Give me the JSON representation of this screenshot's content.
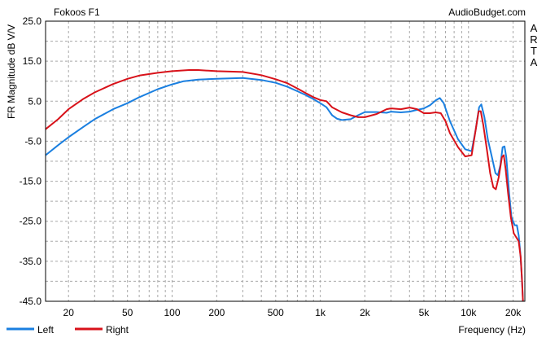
{
  "chart_data": {
    "type": "line",
    "title": "Fokoos F1",
    "source_label": "AudioBudget.com",
    "side_label": "ARTA",
    "xlabel": "Frequency (Hz)",
    "ylabel": "FR Magnitude dB V/V",
    "x_scale": "log",
    "xlim": [
      14,
      24000
    ],
    "ylim": [
      -45,
      25
    ],
    "x_ticks": [
      {
        "value": 20,
        "label": "20"
      },
      {
        "value": 50,
        "label": "50"
      },
      {
        "value": 100,
        "label": "100"
      },
      {
        "value": 200,
        "label": "200"
      },
      {
        "value": 500,
        "label": "500"
      },
      {
        "value": 1000,
        "label": "1k"
      },
      {
        "value": 2000,
        "label": "2k"
      },
      {
        "value": 5000,
        "label": "5k"
      },
      {
        "value": 10000,
        "label": "10k"
      },
      {
        "value": 20000,
        "label": "20k"
      }
    ],
    "y_ticks": [
      {
        "value": 25,
        "label": "25.0"
      },
      {
        "value": 15,
        "label": "15.0"
      },
      {
        "value": 5,
        "label": "5.0"
      },
      {
        "value": -5,
        "label": "-5.0"
      },
      {
        "value": -15,
        "label": "-15.0"
      },
      {
        "value": -25,
        "label": "-25.0"
      },
      {
        "value": -35,
        "label": "-35.0"
      },
      {
        "value": -45,
        "label": "-45.0"
      }
    ],
    "grid": true,
    "legend_position": "bottom-left",
    "series": [
      {
        "name": "Left",
        "color": "#1a7fe0",
        "points": [
          [
            14,
            -8.5
          ],
          [
            17,
            -6
          ],
          [
            20,
            -4
          ],
          [
            25,
            -1.5
          ],
          [
            30,
            0.5
          ],
          [
            40,
            3
          ],
          [
            50,
            4.5
          ],
          [
            60,
            6
          ],
          [
            80,
            8
          ],
          [
            100,
            9.2
          ],
          [
            120,
            10
          ],
          [
            150,
            10.4
          ],
          [
            200,
            10.6
          ],
          [
            300,
            10.8
          ],
          [
            400,
            10.3
          ],
          [
            500,
            9.6
          ],
          [
            600,
            8.6
          ],
          [
            700,
            7.5
          ],
          [
            800,
            6.5
          ],
          [
            900,
            5.5
          ],
          [
            1000,
            4.5
          ],
          [
            1100,
            3.5
          ],
          [
            1200,
            1.5
          ],
          [
            1300,
            0.6
          ],
          [
            1400,
            0.3
          ],
          [
            1600,
            0.5
          ],
          [
            1800,
            1.5
          ],
          [
            2000,
            2.3
          ],
          [
            2400,
            2.3
          ],
          [
            2800,
            2.1
          ],
          [
            3000,
            2.4
          ],
          [
            3500,
            2.2
          ],
          [
            4000,
            2.4
          ],
          [
            5000,
            3.2
          ],
          [
            5500,
            4
          ],
          [
            6000,
            5.2
          ],
          [
            6400,
            5.8
          ],
          [
            6800,
            4.5
          ],
          [
            7500,
            0
          ],
          [
            8500,
            -4.5
          ],
          [
            9500,
            -7
          ],
          [
            10500,
            -7.5
          ],
          [
            11200,
            -2
          ],
          [
            11800,
            3.5
          ],
          [
            12200,
            4.2
          ],
          [
            12800,
            1
          ],
          [
            13500,
            -4.5
          ],
          [
            14500,
            -9.5
          ],
          [
            15200,
            -13
          ],
          [
            15800,
            -13.5
          ],
          [
            16400,
            -11
          ],
          [
            17000,
            -6.5
          ],
          [
            17500,
            -6.3
          ],
          [
            18000,
            -9
          ],
          [
            18800,
            -18
          ],
          [
            19500,
            -24
          ],
          [
            20500,
            -26
          ],
          [
            21200,
            -26
          ],
          [
            21800,
            -28.5
          ],
          [
            22400,
            -33
          ],
          [
            22900,
            -39
          ],
          [
            23300,
            -45
          ]
        ]
      },
      {
        "name": "Right",
        "color": "#d8121a",
        "points": [
          [
            14,
            -2
          ],
          [
            17,
            0.5
          ],
          [
            20,
            3
          ],
          [
            25,
            5.5
          ],
          [
            30,
            7.2
          ],
          [
            40,
            9.3
          ],
          [
            50,
            10.6
          ],
          [
            60,
            11.4
          ],
          [
            80,
            12.1
          ],
          [
            100,
            12.5
          ],
          [
            130,
            12.8
          ],
          [
            150,
            12.8
          ],
          [
            200,
            12.5
          ],
          [
            300,
            12.3
          ],
          [
            400,
            11.5
          ],
          [
            500,
            10.5
          ],
          [
            600,
            9.5
          ],
          [
            700,
            8.2
          ],
          [
            800,
            7
          ],
          [
            900,
            6
          ],
          [
            1000,
            5.3
          ],
          [
            1100,
            5
          ],
          [
            1200,
            3.5
          ],
          [
            1400,
            2.2
          ],
          [
            1600,
            1.5
          ],
          [
            1800,
            1
          ],
          [
            2000,
            1
          ],
          [
            2400,
            1.8
          ],
          [
            2800,
            3
          ],
          [
            3000,
            3.2
          ],
          [
            3500,
            3
          ],
          [
            4000,
            3.4
          ],
          [
            4500,
            3
          ],
          [
            5000,
            2
          ],
          [
            5500,
            2
          ],
          [
            6000,
            2.2
          ],
          [
            6500,
            2
          ],
          [
            7000,
            0
          ],
          [
            7500,
            -3
          ],
          [
            8500,
            -6.5
          ],
          [
            9500,
            -8.8
          ],
          [
            10500,
            -8.5
          ],
          [
            11200,
            -2
          ],
          [
            11700,
            2.5
          ],
          [
            12100,
            2.5
          ],
          [
            12600,
            -1
          ],
          [
            13300,
            -7
          ],
          [
            14000,
            -13
          ],
          [
            14700,
            -16.5
          ],
          [
            15300,
            -17
          ],
          [
            16000,
            -14
          ],
          [
            16800,
            -9
          ],
          [
            17300,
            -8.5
          ],
          [
            17800,
            -12
          ],
          [
            18500,
            -18
          ],
          [
            19300,
            -24
          ],
          [
            20200,
            -28
          ],
          [
            21000,
            -29
          ],
          [
            21800,
            -30
          ],
          [
            22500,
            -34
          ],
          [
            23000,
            -40
          ],
          [
            23300,
            -45
          ]
        ]
      }
    ]
  }
}
